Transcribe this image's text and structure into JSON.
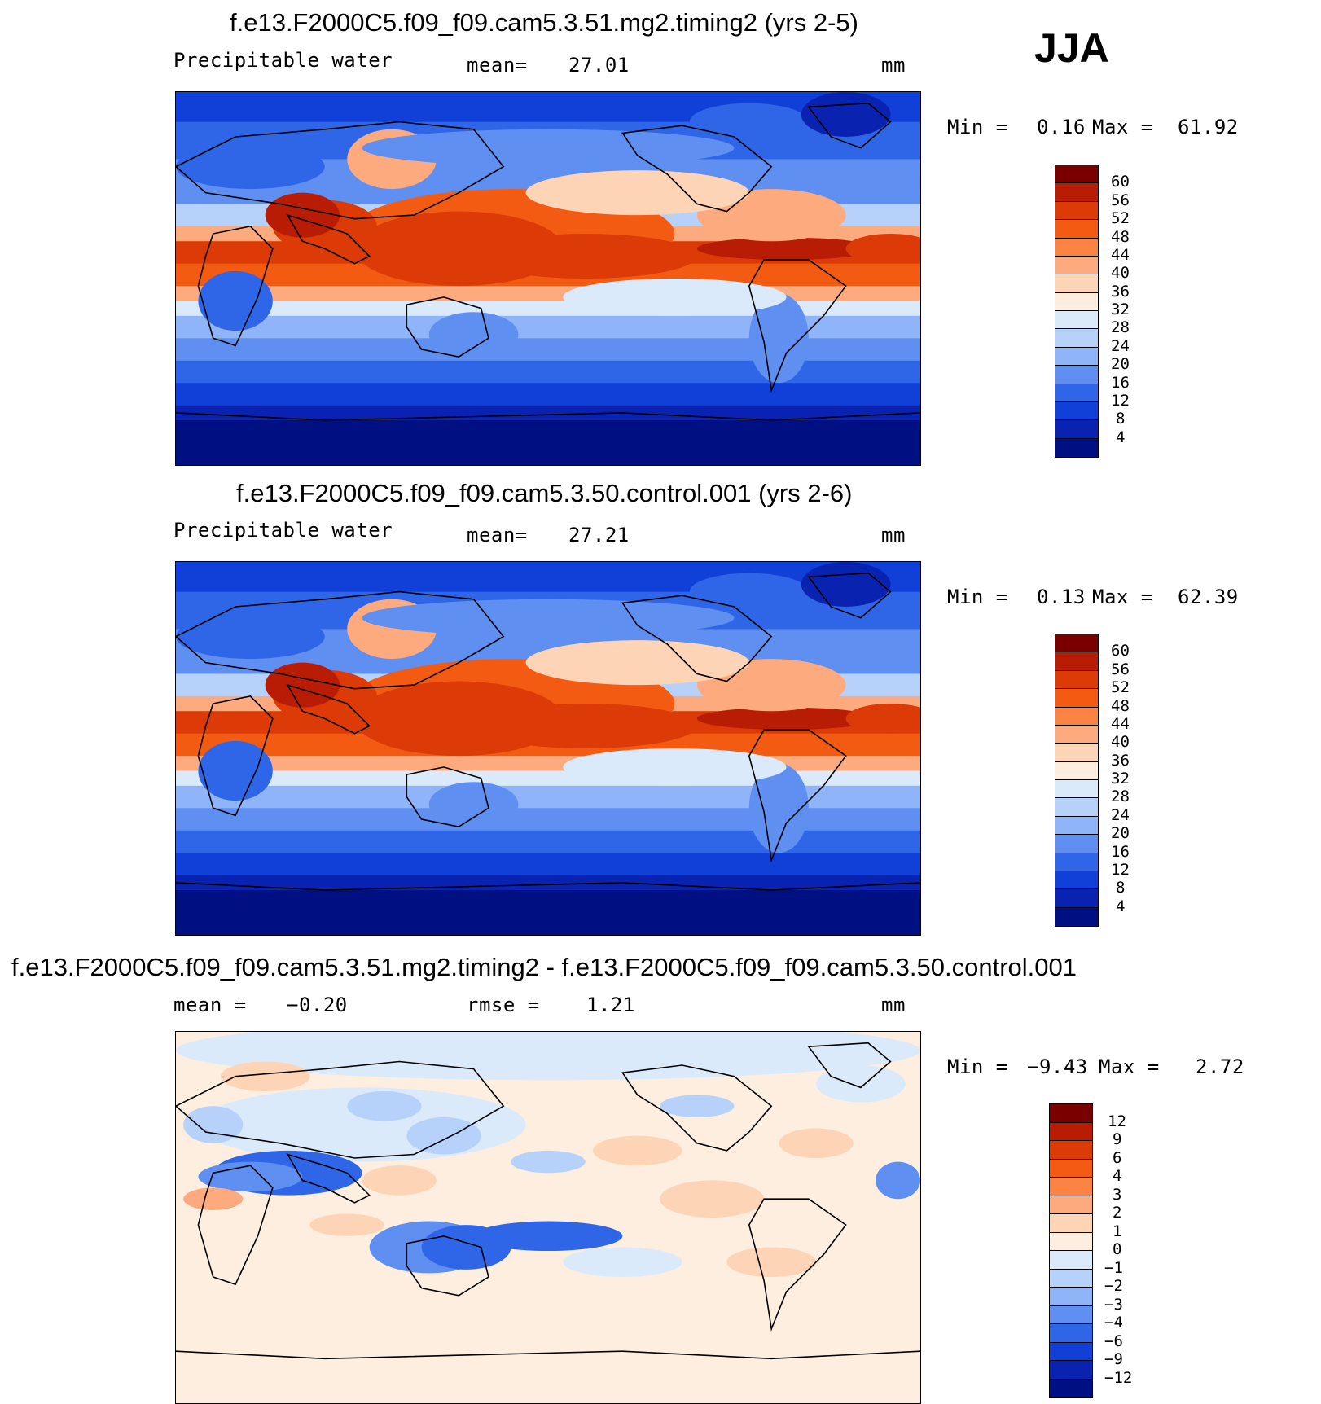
{
  "season": "JJA",
  "panels": [
    {
      "id": "timing2",
      "title": "f.e13.F2000C5.f09_f09.cam5.3.51.mg2.timing2 (yrs 2-5)",
      "variable": "Precipitable water",
      "stat_label": "mean=",
      "stat_value": "27.01",
      "units": "mm",
      "min_label": "Min =",
      "min_value": "0.16",
      "max_label": "Max =",
      "max_value": "61.92",
      "colorbar_labels": [
        "60",
        "56",
        "52",
        "48",
        "44",
        "40",
        "36",
        "32",
        "28",
        "24",
        "20",
        "16",
        "12",
        "8",
        "4"
      ],
      "colorbar_colors": [
        "#7a0000",
        "#b81c04",
        "#dc3a06",
        "#f45b12",
        "#fb8444",
        "#fdab7e",
        "#fdd4b6",
        "#fdeee0",
        "#dbeafa",
        "#b7d2fa",
        "#8fb4f7",
        "#5f8ff0",
        "#2f66e8",
        "#1040d8",
        "#0a22b0",
        "#000f82"
      ]
    },
    {
      "id": "control",
      "title": "f.e13.F2000C5.f09_f09.cam5.3.50.control.001 (yrs 2-6)",
      "variable": "Precipitable water",
      "stat_label": "mean=",
      "stat_value": "27.21",
      "units": "mm",
      "min_label": "Min =",
      "min_value": "0.13",
      "max_label": "Max =",
      "max_value": "62.39",
      "colorbar_labels": [
        "60",
        "56",
        "52",
        "48",
        "44",
        "40",
        "36",
        "32",
        "28",
        "24",
        "20",
        "16",
        "12",
        "8",
        "4"
      ],
      "colorbar_colors": [
        "#7a0000",
        "#b81c04",
        "#dc3a06",
        "#f45b12",
        "#fb8444",
        "#fdab7e",
        "#fdd4b6",
        "#fdeee0",
        "#dbeafa",
        "#b7d2fa",
        "#8fb4f7",
        "#5f8ff0",
        "#2f66e8",
        "#1040d8",
        "#0a22b0",
        "#000f82"
      ]
    },
    {
      "id": "diff",
      "title": "f.e13.F2000C5.f09_f09.cam5.3.51.mg2.timing2 - f.e13.F2000C5.f09_f09.cam5.3.50.control.001",
      "stat_label": "mean =",
      "stat_value": "−0.20",
      "rmse_label": "rmse =",
      "rmse_value": "1.21",
      "units": "mm",
      "min_label": "Min =",
      "min_value": "−9.43",
      "max_label": "Max =",
      "max_value": "2.72",
      "colorbar_labels": [
        "12",
        "9",
        "6",
        "4",
        "3",
        "2",
        "1",
        "0",
        "−1",
        "−2",
        "−3",
        "−4",
        "−6",
        "−9",
        "−12"
      ],
      "colorbar_colors": [
        "#7a0000",
        "#b81c04",
        "#dc3a06",
        "#f45b12",
        "#fb8444",
        "#fdab7e",
        "#fdd4b6",
        "#fdeee0",
        "#dbeafa",
        "#b7d2fa",
        "#8fb4f7",
        "#5f8ff0",
        "#2f66e8",
        "#1040d8",
        "#0a22b0",
        "#000f82"
      ]
    }
  ]
}
